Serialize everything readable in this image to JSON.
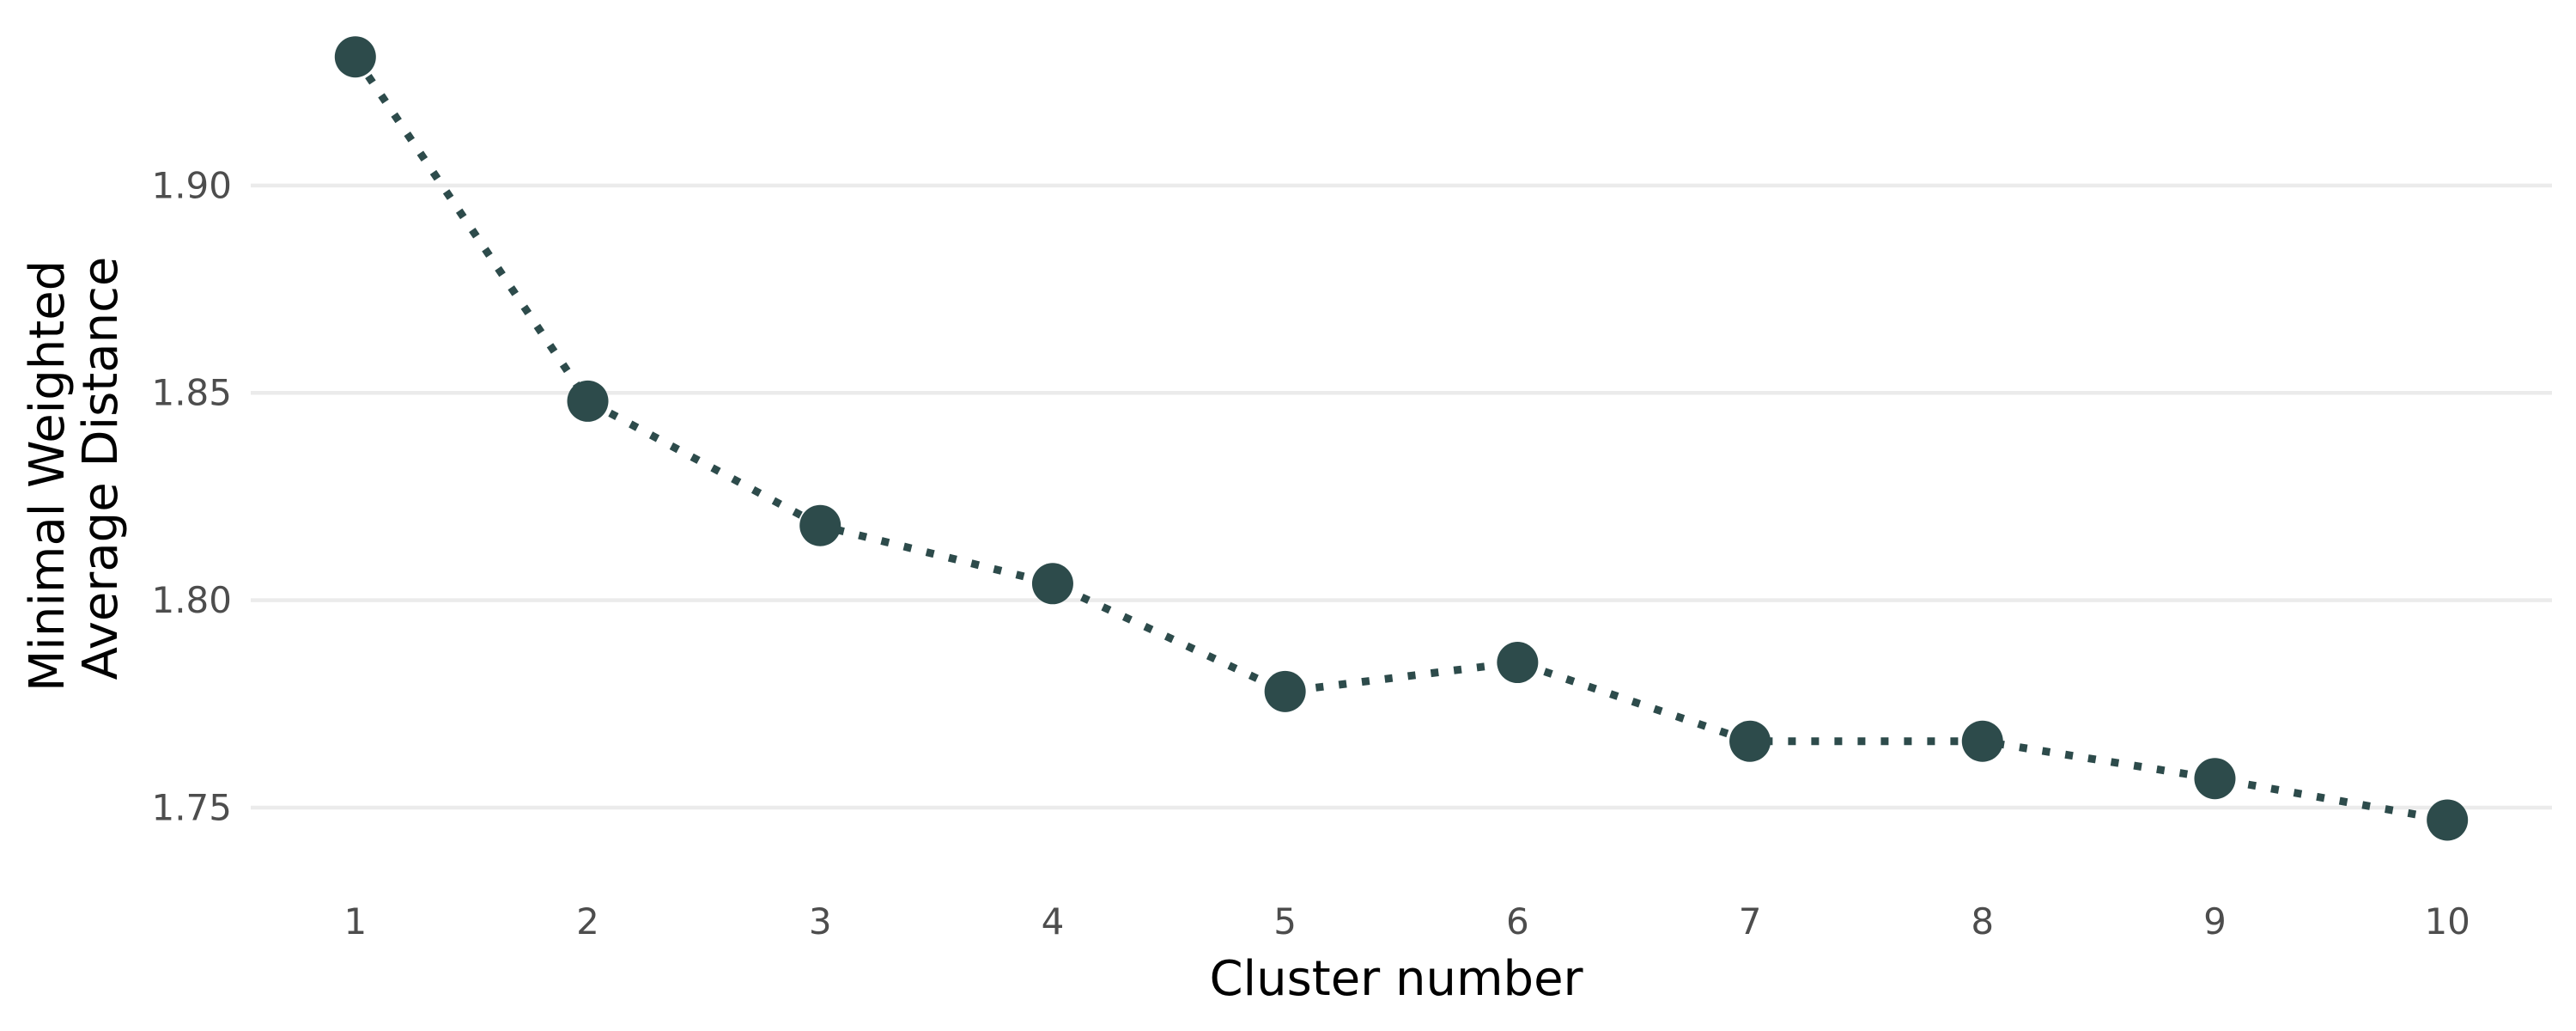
{
  "chart_data": {
    "type": "line",
    "title": "",
    "xlabel": "Cluster number",
    "ylabel": [
      "Minimal Weighted",
      "Average Distance"
    ],
    "x": [
      1,
      2,
      3,
      4,
      5,
      6,
      7,
      8,
      9,
      10
    ],
    "x_tick_labels": [
      "1",
      "2",
      "3",
      "4",
      "5",
      "6",
      "7",
      "8",
      "9",
      "10"
    ],
    "y_ticks": [
      1.75,
      1.8,
      1.85,
      1.9
    ],
    "y_tick_labels": [
      "1.75",
      "1.80",
      "1.85",
      "1.90"
    ],
    "xlim": [
      0.55,
      10.45
    ],
    "ylim": [
      1.7355,
      1.9385
    ],
    "grid": true,
    "legend": "none",
    "series": [
      {
        "values": [
          1.931,
          1.848,
          1.818,
          1.804,
          1.778,
          1.785,
          1.766,
          1.766,
          1.757,
          1.747
        ],
        "color": "#2d4b4b",
        "line_style": "dotted",
        "marker": "circle"
      }
    ]
  }
}
